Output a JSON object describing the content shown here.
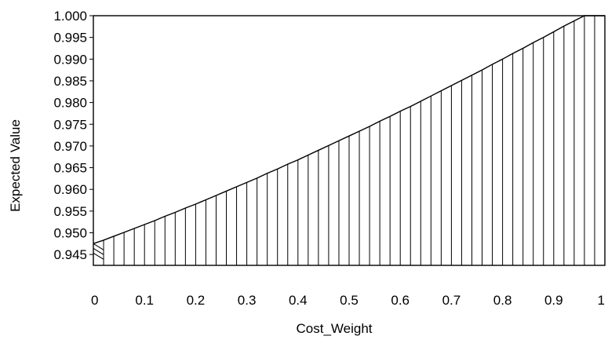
{
  "chart_data": {
    "type": "area",
    "title": "",
    "xlabel": "Cost_Weight",
    "ylabel": "Expected Value",
    "x_ticks": [
      0,
      0.1,
      0.2,
      0.3,
      0.4,
      0.5,
      0.6,
      0.7,
      0.8,
      0.9,
      1
    ],
    "x_tick_labels": [
      "0",
      "0.1",
      "0.2",
      "0.3",
      "0.4",
      "0.5",
      "0.6",
      "0.7",
      "0.8",
      "0.9",
      "1"
    ],
    "y_ticks": [
      0.945,
      0.95,
      0.955,
      0.96,
      0.965,
      0.97,
      0.975,
      0.98,
      0.985,
      0.99,
      0.995,
      1.0
    ],
    "y_tick_labels": [
      "0.945",
      "0.950",
      "0.955",
      "0.960",
      "0.965",
      "0.970",
      "0.975",
      "0.980",
      "0.985",
      "0.990",
      "0.995",
      "1.000"
    ],
    "xlim": [
      0,
      1
    ],
    "ylim": [
      0.9425,
      1.0
    ],
    "grid": false,
    "legend": "none",
    "fill_pattern": "vertical-hatch",
    "series": [
      {
        "x": [
          0,
          0.02,
          0.04,
          0.06,
          0.08,
          0.1,
          0.12,
          0.14,
          0.16,
          0.18,
          0.2,
          0.22,
          0.24,
          0.26,
          0.28,
          0.3,
          0.32,
          0.34,
          0.36,
          0.38,
          0.4,
          0.42,
          0.44,
          0.46,
          0.48,
          0.5,
          0.52,
          0.54,
          0.56,
          0.58,
          0.6,
          0.62,
          0.64,
          0.66,
          0.68,
          0.7,
          0.72,
          0.74,
          0.76,
          0.78,
          0.8,
          0.82,
          0.84,
          0.86,
          0.88,
          0.9,
          0.92,
          0.94,
          0.96,
          0.98,
          1
        ],
        "values": [
          0.9475,
          0.9483,
          0.9492,
          0.9501,
          0.951,
          0.9519,
          0.9528,
          0.9538,
          0.9547,
          0.9557,
          0.9566,
          0.9576,
          0.9586,
          0.9596,
          0.9606,
          0.9616,
          0.9626,
          0.9637,
          0.9647,
          0.9658,
          0.9668,
          0.9679,
          0.969,
          0.9701,
          0.9712,
          0.9723,
          0.9734,
          0.9745,
          0.9757,
          0.9768,
          0.978,
          0.9791,
          0.9803,
          0.9815,
          0.9827,
          0.9839,
          0.9851,
          0.9863,
          0.9875,
          0.9888,
          0.99,
          0.9913,
          0.9925,
          0.9938,
          0.995,
          0.9963,
          0.9976,
          0.9988,
          1.0,
          1.0,
          1.0
        ]
      }
    ],
    "colors": {
      "line": "#000000",
      "background": "#ffffff"
    }
  }
}
